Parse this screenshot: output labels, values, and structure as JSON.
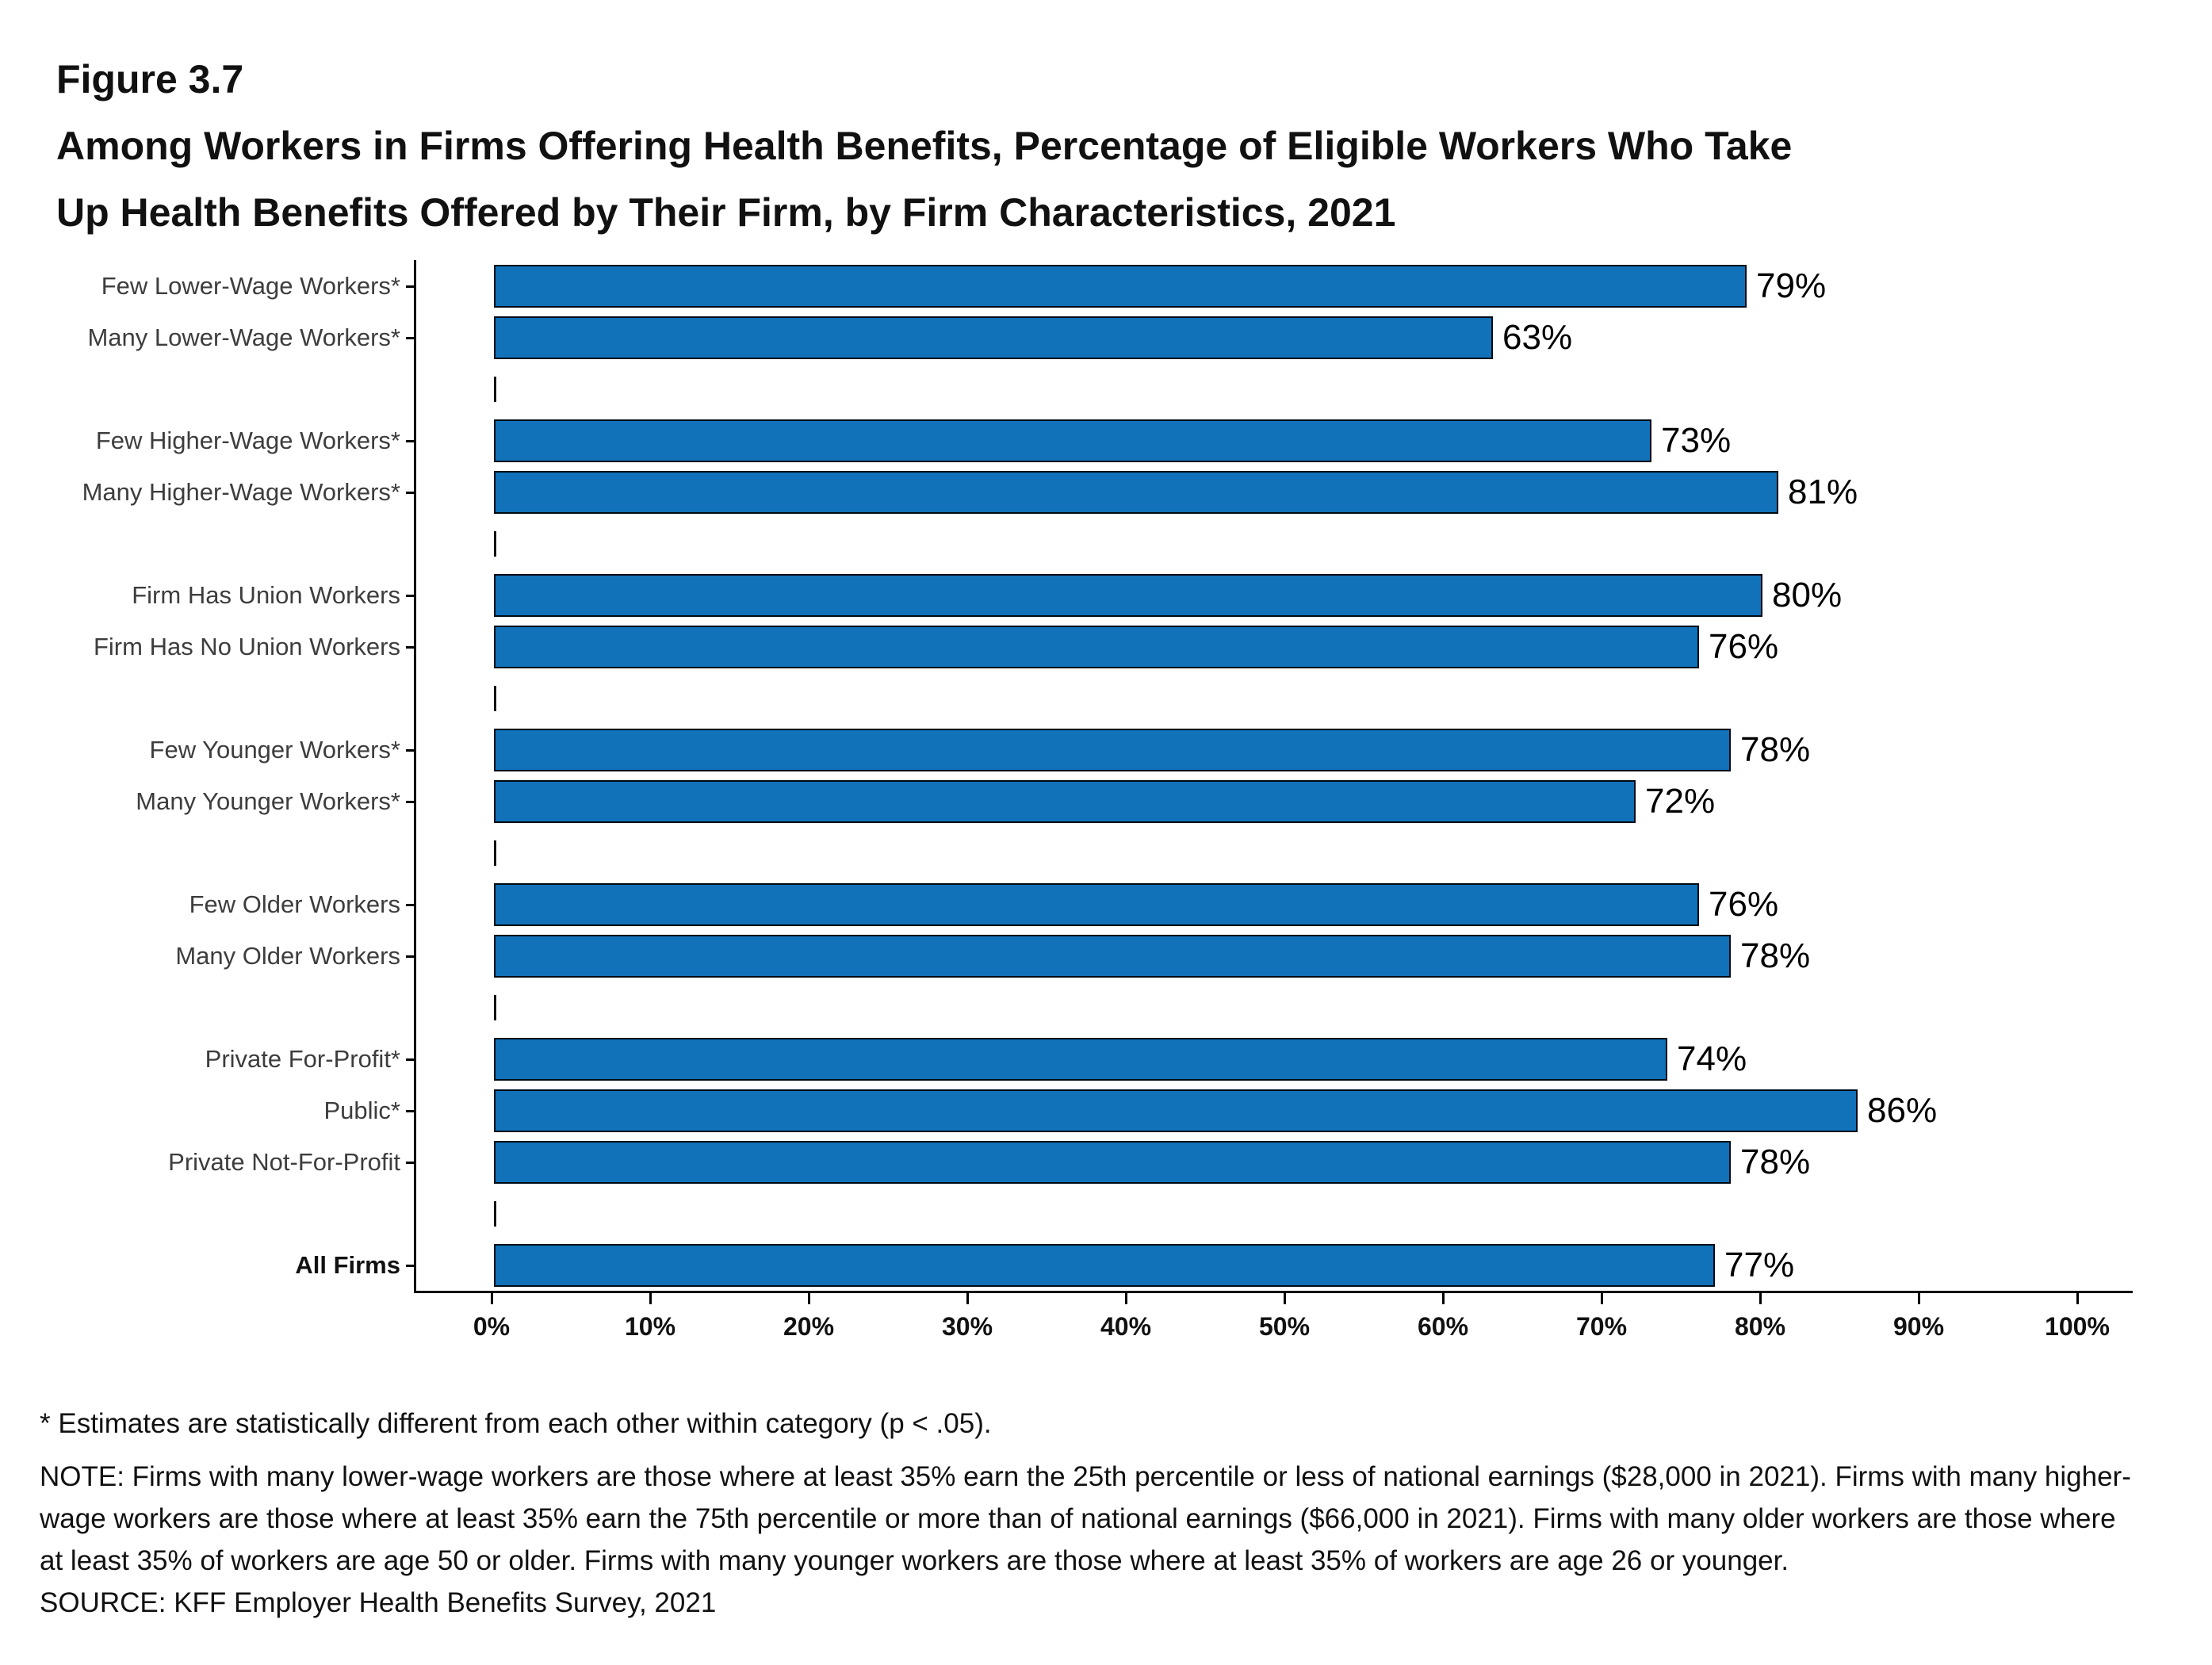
{
  "header": {
    "figure_label": "Figure 3.7",
    "title_lines": [
      "Among Workers in Firms Offering Health Benefits, Percentage of Eligible Workers Who Take",
      "Up Health Benefits Offered by Their Firm, by Firm Characteristics, 2021"
    ]
  },
  "chart_data": {
    "type": "bar",
    "orientation": "horizontal",
    "title": "Among Workers in Firms Offering Health Benefits, Percentage of Eligible Workers Who Take Up Health Benefits Offered by Their Firm, by Firm Characteristics, 2021",
    "xlabel": "",
    "ylabel": "",
    "xlim": [
      0,
      100
    ],
    "grid": false,
    "legend": false,
    "bar_color": "#1171B9",
    "bar_outline_color": "#000a14",
    "x_ticks": [
      "0%",
      "10%",
      "20%",
      "30%",
      "40%",
      "50%",
      "60%",
      "70%",
      "80%",
      "90%",
      "100%"
    ],
    "value_label_format": "percent",
    "groups": [
      [
        {
          "label": "Few Lower-Wage Workers*",
          "value": 79
        },
        {
          "label": "Many Lower-Wage Workers*",
          "value": 63
        }
      ],
      [
        {
          "label": "Few Higher-Wage Workers*",
          "value": 73
        },
        {
          "label": "Many Higher-Wage Workers*",
          "value": 81
        }
      ],
      [
        {
          "label": "Firm Has Union Workers",
          "value": 80
        },
        {
          "label": "Firm Has No Union Workers",
          "value": 76
        }
      ],
      [
        {
          "label": "Few Younger Workers*",
          "value": 78
        },
        {
          "label": "Many Younger Workers*",
          "value": 72
        }
      ],
      [
        {
          "label": "Few Older Workers",
          "value": 76
        },
        {
          "label": "Many Older Workers",
          "value": 78
        }
      ],
      [
        {
          "label": "Private For-Profit*",
          "value": 74
        },
        {
          "label": "Public*",
          "value": 86
        },
        {
          "label": "Private Not-For-Profit",
          "value": 78
        }
      ],
      [
        {
          "label": "All Firms",
          "value": 77,
          "bold": true
        }
      ]
    ]
  },
  "footnotes": {
    "star": "* Estimates are statistically different from each other within category (p < .05).",
    "note": "NOTE: Firms with many lower-wage workers are those where at least 35% earn the 25th percentile or less of national earnings ($28,000 in 2021). Firms with many higher-wage workers are those where at least 35% earn the 75th percentile or more than of national earnings ($66,000 in 2021). Firms with many older workers are those where at least 35% of workers are age 50 or older. Firms with many younger workers are those where at least 35% of workers are age 26 or younger.",
    "source": "SOURCE: KFF Employer Health Benefits Survey, 2021"
  }
}
